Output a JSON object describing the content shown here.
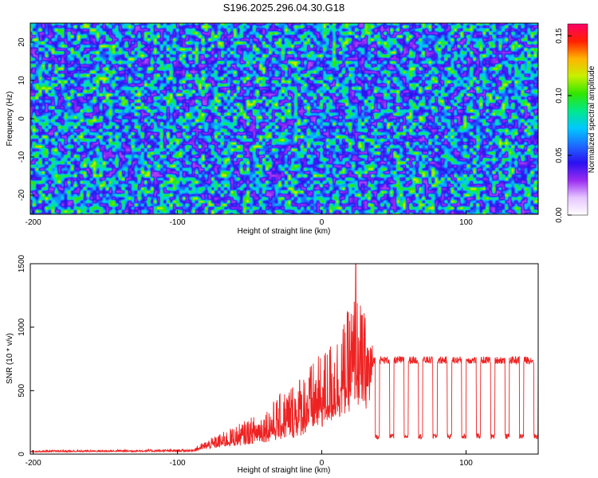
{
  "title": "S196.2025.296.04.30.G18",
  "chart_data": [
    {
      "type": "heatmap",
      "title": "S196.2025.296.04.30.G18",
      "xlabel": "Height of straight line (km)",
      "ylabel": "Frequency (Hz)",
      "xlim": [
        -202,
        150
      ],
      "ylim": [
        -25,
        25
      ],
      "x_ticks": [
        -200,
        -100,
        0,
        100
      ],
      "y_ticks": [
        -20,
        -10,
        0,
        10,
        20
      ],
      "colorbar": {
        "label": "Normalized spectral amplitude",
        "range": [
          0,
          0.16
        ],
        "ticks": [
          0.0,
          0.05,
          0.1,
          0.15
        ],
        "tick_labels": [
          "0.00",
          "0.05",
          "0.10",
          "0.15"
        ],
        "colormap": [
          "#ffffff",
          "#e6c6ff",
          "#9a2cf0",
          "#2a10f0",
          "#1d6bff",
          "#00c8ff",
          "#00e88a",
          "#32e600",
          "#c8f000",
          "#ffb400",
          "#ff2000",
          "#ff0066"
        ]
      },
      "field": {
        "description_values": "noisy amplitude field, mostly 0.02-0.06 with sparse peaks up to ~0.15",
        "seed": 196
      }
    },
    {
      "type": "line",
      "xlabel": "Height of straight line (km)",
      "ylabel": "SNR (10 * v/v)",
      "xlim": [
        -202,
        150
      ],
      "ylim": [
        0,
        1500
      ],
      "x_ticks": [
        -200,
        -100,
        0,
        100
      ],
      "y_ticks": [
        0,
        500,
        1000,
        1500
      ],
      "color": "#ee2222",
      "series": [
        {
          "name": "SNR",
          "profile": [
            {
              "x": -202,
              "mean": 20,
              "spread": 12
            },
            {
              "x": -90,
              "mean": 25,
              "spread": 18
            },
            {
              "x": -80,
              "mean": 60,
              "spread": 60
            },
            {
              "x": -60,
              "mean": 110,
              "spread": 140
            },
            {
              "x": -40,
              "mean": 170,
              "spread": 220
            },
            {
              "x": -20,
              "mean": 260,
              "spread": 400
            },
            {
              "x": 0,
              "mean": 380,
              "spread": 520
            },
            {
              "x": 15,
              "mean": 520,
              "spread": 650
            },
            {
              "x": 23,
              "mean": 650,
              "spread": 800
            },
            {
              "x": 33,
              "mean": 560,
              "spread": 600
            },
            {
              "x": 36,
              "mean": 740,
              "spread": 60
            },
            {
              "x": 150,
              "mean": 740,
              "spread": 60
            }
          ],
          "peak": {
            "x": 23.5,
            "y": 1500
          },
          "dropouts": {
            "level": 140,
            "start": 37,
            "period": 10,
            "width": 3,
            "end": 150
          }
        }
      ]
    }
  ]
}
